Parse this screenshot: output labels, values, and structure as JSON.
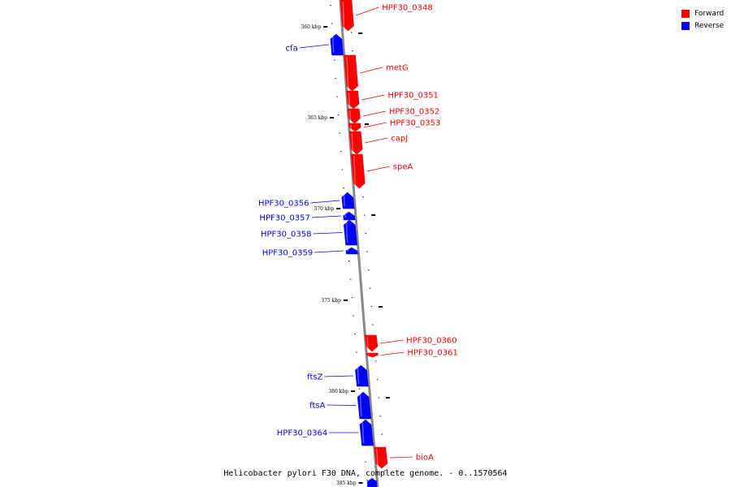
{
  "caption": "Helicobacter pylori F30 DNA, complete genome. - 0..1570564",
  "legend": [
    {
      "label": "Forward",
      "color": "#ff0000"
    },
    {
      "label": "Reverse",
      "color": "#0000ff"
    }
  ],
  "colors": {
    "forward": "#ff0000",
    "reverse": "#0000ff",
    "backbone": "#888888"
  },
  "scale_marks": [
    "360 kbp",
    "365 kbp",
    "370 kbp",
    "375 kbp",
    "380 kbp",
    "385 kbp"
  ],
  "genes": [
    {
      "name": "HPF30_0348",
      "strand": "forward"
    },
    {
      "name": "cfa",
      "strand": "reverse"
    },
    {
      "name": "metG",
      "strand": "forward"
    },
    {
      "name": "HPF30_0351",
      "strand": "forward"
    },
    {
      "name": "HPF30_0352",
      "strand": "forward"
    },
    {
      "name": "HPF30_0353",
      "strand": "forward"
    },
    {
      "name": "capJ",
      "strand": "forward"
    },
    {
      "name": "speA",
      "strand": "forward"
    },
    {
      "name": "HPF30_0356",
      "strand": "reverse"
    },
    {
      "name": "HPF30_0357",
      "strand": "reverse"
    },
    {
      "name": "HPF30_0358",
      "strand": "reverse"
    },
    {
      "name": "HPF30_0359",
      "strand": "reverse"
    },
    {
      "name": "HPF30_0360",
      "strand": "forward"
    },
    {
      "name": "HPF30_0361",
      "strand": "forward"
    },
    {
      "name": "ftsZ",
      "strand": "reverse"
    },
    {
      "name": "ftsA",
      "strand": "reverse"
    },
    {
      "name": "HPF30_0364",
      "strand": "reverse"
    },
    {
      "name": "bioA",
      "strand": "forward"
    }
  ]
}
